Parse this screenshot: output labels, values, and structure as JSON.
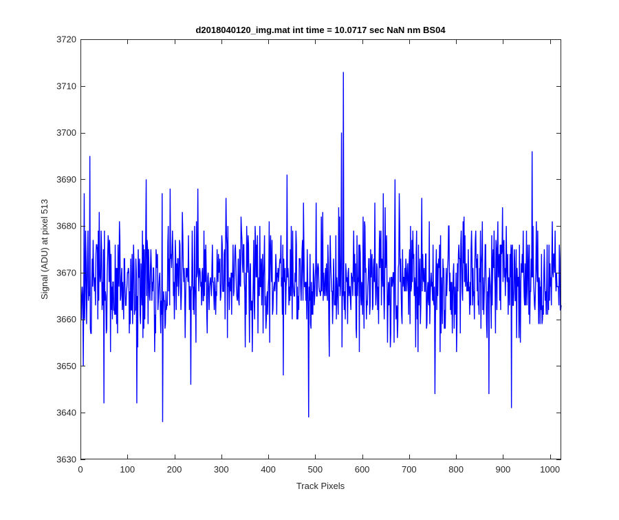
{
  "chart_data": {
    "type": "line",
    "title": "d2018040120_img.mat int time = 10.0717 sec  NaN nm BS04",
    "xlabel": "Track Pixels",
    "ylabel": "Signal (ADU) at pixel 513",
    "xlim": [
      0,
      1024
    ],
    "ylim": [
      3630,
      3720
    ],
    "xticks": [
      0,
      100,
      200,
      300,
      400,
      500,
      600,
      700,
      800,
      900,
      1000
    ],
    "yticks": [
      3630,
      3640,
      3650,
      3660,
      3670,
      3680,
      3690,
      3700,
      3710,
      3720
    ],
    "grid": false,
    "series": [
      {
        "color": "#0000ff",
        "n_points": 1024,
        "mean": 3668.5,
        "noise_std": 6.5,
        "x_start": 1,
        "notable_points": [
          {
            "x": 6,
            "y": 3650
          },
          {
            "x": 20,
            "y": 3695
          },
          {
            "x": 50,
            "y": 3642
          },
          {
            "x": 120,
            "y": 3642
          },
          {
            "x": 140,
            "y": 3690
          },
          {
            "x": 175,
            "y": 3638
          },
          {
            "x": 235,
            "y": 3646
          },
          {
            "x": 250,
            "y": 3688
          },
          {
            "x": 440,
            "y": 3691
          },
          {
            "x": 486,
            "y": 3639
          },
          {
            "x": 556,
            "y": 3700
          },
          {
            "x": 560,
            "y": 3713
          },
          {
            "x": 670,
            "y": 3690
          },
          {
            "x": 755,
            "y": 3644
          },
          {
            "x": 870,
            "y": 3644
          },
          {
            "x": 918,
            "y": 3641
          },
          {
            "x": 962,
            "y": 3696
          }
        ]
      }
    ]
  }
}
